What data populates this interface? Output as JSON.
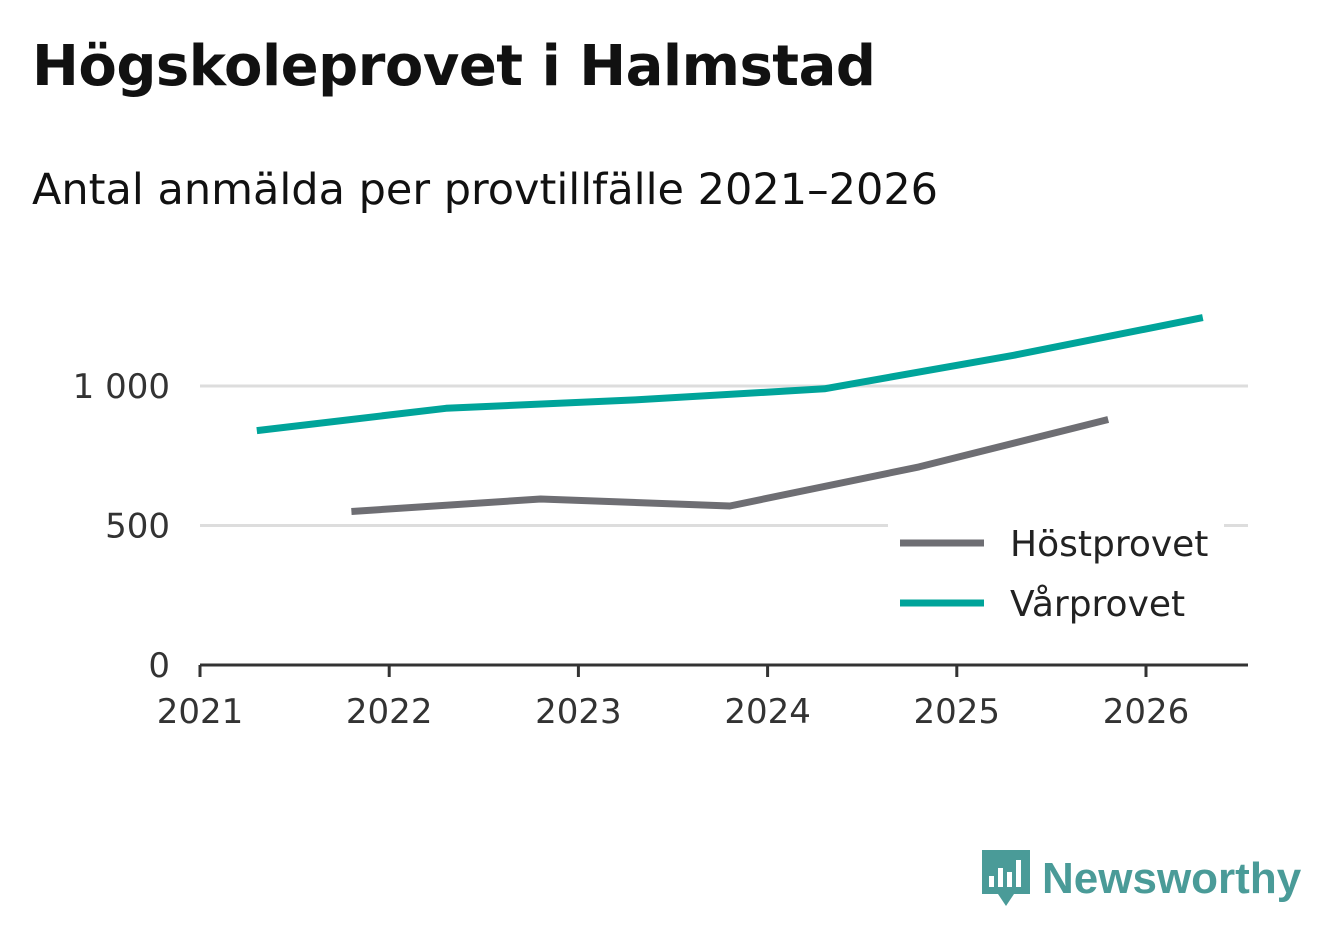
{
  "title": "Högskoleprovet i Halmstad",
  "subtitle": "Antal anmälda per provtillfälle 2021–2026",
  "brand": {
    "name": "Newsworthy",
    "color": "#4a9b98"
  },
  "chart_data": {
    "type": "line",
    "title": "Högskoleprovet i Halmstad",
    "subtitle": "Antal anmälda per provtillfälle 2021–2026",
    "xlabel": "",
    "ylabel": "",
    "xlim": [
      2021,
      2026.55
    ],
    "ylim": [
      0,
      1300
    ],
    "x_ticks": [
      2021,
      2022,
      2023,
      2024,
      2025,
      2026
    ],
    "x_tick_labels": [
      "2021",
      "2022",
      "2023",
      "2024",
      "2025",
      "2026"
    ],
    "y_ticks": [
      0,
      500,
      1000
    ],
    "y_tick_labels": [
      "0",
      "500",
      "1 000"
    ],
    "grid": true,
    "legend_position": "bottom-right",
    "series": [
      {
        "name": "Höstprovet",
        "color": "#6e6e73",
        "x": [
          2021.8,
          2022.8,
          2023.8,
          2024.8,
          2025.8
        ],
        "values": [
          550,
          595,
          570,
          710,
          880
        ]
      },
      {
        "name": "Vårprovet",
        "color": "#00a49a",
        "x": [
          2021.3,
          2022.3,
          2023.3,
          2024.3,
          2025.3,
          2026.3
        ],
        "values": [
          840,
          920,
          950,
          990,
          1110,
          1245
        ]
      }
    ]
  }
}
